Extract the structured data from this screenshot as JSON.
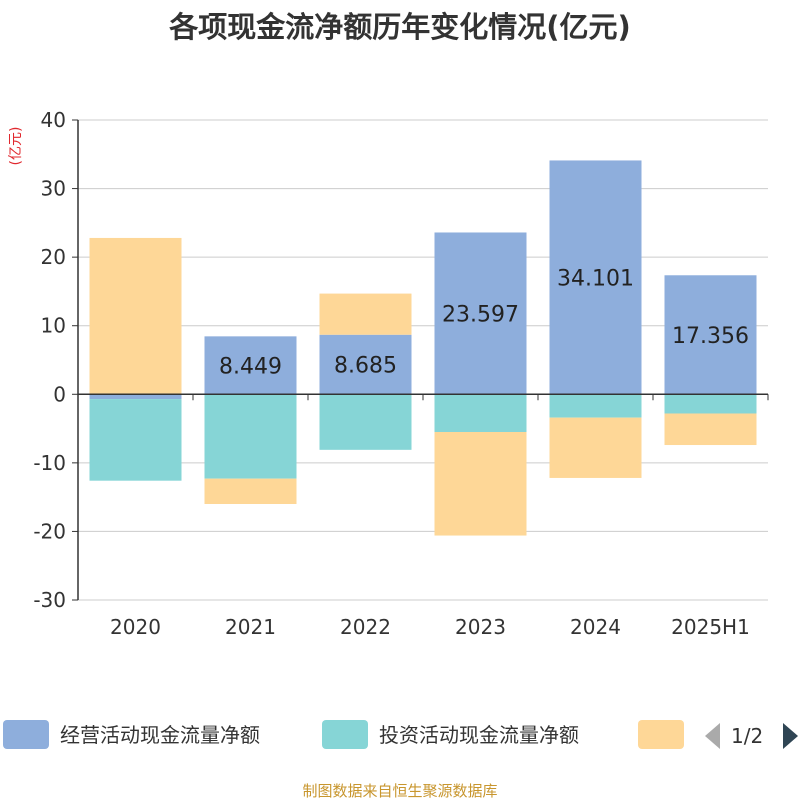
{
  "chart_data": {
    "type": "bar",
    "stacked": true,
    "title": "各项现金流净额历年变化情况(亿元)",
    "unit_label": "(亿元)",
    "categories": [
      "2020",
      "2021",
      "2022",
      "2023",
      "2024",
      "2025H1"
    ],
    "ylim": [
      -30,
      40
    ],
    "yticks": [
      -30,
      -20,
      -10,
      0,
      10,
      20,
      30,
      40
    ],
    "grid": true,
    "series": [
      {
        "name": "经营活动现金流量净额",
        "color": "#8eaedc",
        "values": [
          -0.7,
          8.449,
          8.685,
          23.597,
          34.101,
          17.356
        ],
        "labels": [
          "",
          "8.449",
          "8.685",
          "23.597",
          "34.101",
          "17.356"
        ]
      },
      {
        "name": "投资活动现金流量净额",
        "color": "#86d5d6",
        "values": [
          -11.9,
          -12.3,
          -8.1,
          -5.5,
          -3.4,
          -2.8
        ]
      },
      {
        "name": "",
        "color": "#fed797",
        "values": [
          22.8,
          -3.7,
          6.0,
          -15.1,
          -8.8,
          -4.6
        ]
      }
    ]
  },
  "legend": {
    "page": "1/2"
  },
  "source": "制图数据来自恒生聚源数据库"
}
